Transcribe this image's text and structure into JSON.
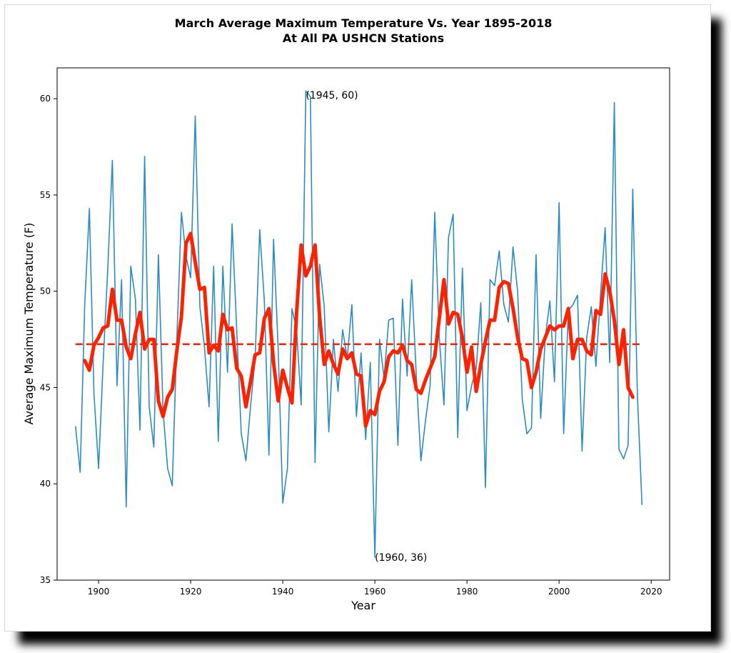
{
  "chart_data": {
    "type": "line",
    "title": "March Average Maximum Temperature Vs. Year 1895-2018",
    "subtitle": "At All PA USHCN Stations",
    "xlabel": "Year",
    "ylabel": "Average Maximum Temperature (F)",
    "xlim": [
      1891,
      2024
    ],
    "ylim": [
      35,
      61.6
    ],
    "xticks": [
      1900,
      1920,
      1940,
      1960,
      1980,
      2000,
      2020
    ],
    "yticks": [
      35,
      40,
      45,
      50,
      55,
      60
    ],
    "grid": false,
    "colors": {
      "raw": "#2b8cbe",
      "smooth": "#ff2200",
      "mean": "#ff2200"
    },
    "mean_value": 47.25,
    "annotations": [
      {
        "text": "(1945, 60)",
        "x": 1945,
        "y": 60
      },
      {
        "text": "(1960, 36)",
        "x": 1960,
        "y": 36
      }
    ],
    "series": [
      {
        "style": "raw",
        "x": [
          1895,
          1896,
          1897,
          1898,
          1899,
          1900,
          1901,
          1902,
          1903,
          1904,
          1905,
          1906,
          1907,
          1908,
          1909,
          1910,
          1911,
          1912,
          1913,
          1914,
          1915,
          1916,
          1917,
          1918,
          1919,
          1920,
          1921,
          1922,
          1923,
          1924,
          1925,
          1926,
          1927,
          1928,
          1929,
          1930,
          1931,
          1932,
          1933,
          1934,
          1935,
          1936,
          1937,
          1938,
          1939,
          1940,
          1941,
          1942,
          1943,
          1944,
          1945,
          1946,
          1947,
          1948,
          1949,
          1950,
          1951,
          1952,
          1953,
          1954,
          1955,
          1956,
          1957,
          1958,
          1959,
          1960,
          1961,
          1962,
          1963,
          1964,
          1965,
          1966,
          1967,
          1968,
          1969,
          1970,
          1971,
          1972,
          1973,
          1974,
          1975,
          1976,
          1977,
          1978,
          1979,
          1980,
          1981,
          1982,
          1983,
          1984,
          1985,
          1986,
          1987,
          1988,
          1989,
          1990,
          1991,
          1992,
          1993,
          1994,
          1995,
          1996,
          1997,
          1998,
          1999,
          2000,
          2001,
          2002,
          2003,
          2004,
          2005,
          2006,
          2007,
          2008,
          2009,
          2010,
          2011,
          2012,
          2013,
          2014,
          2015,
          2016,
          2017,
          2018
        ],
        "values": [
          43.0,
          40.6,
          49.3,
          54.3,
          44.7,
          40.8,
          46.3,
          51.2,
          56.8,
          45.1,
          50.6,
          38.8,
          51.3,
          49.6,
          42.8,
          57.0,
          44.0,
          41.9,
          51.9,
          43.8,
          40.8,
          39.9,
          47.5,
          54.1,
          51.8,
          50.7,
          59.1,
          49.2,
          47.1,
          44.0,
          51.3,
          42.2,
          51.3,
          45.8,
          53.5,
          48.0,
          42.6,
          41.2,
          44.0,
          46.5,
          53.2,
          49.5,
          41.5,
          52.7,
          47.0,
          39.0,
          40.8,
          49.1,
          48.0,
          44.1,
          60.4,
          60.1,
          41.1,
          51.4,
          49.2,
          42.7,
          47.5,
          44.8,
          48.0,
          46.5,
          49.3,
          43.5,
          46.8,
          42.3,
          46.3,
          36.2,
          47.5,
          45.5,
          48.5,
          48.6,
          42.0,
          49.6,
          45.6,
          50.6,
          45.6,
          41.2,
          43.3,
          45.1,
          54.1,
          47.6,
          44.1,
          52.8,
          54.0,
          42.4,
          51.2,
          43.8,
          45.1,
          46.0,
          49.4,
          39.8,
          50.6,
          50.3,
          52.1,
          49.3,
          48.4,
          52.3,
          50.0,
          44.4,
          42.6,
          42.9,
          51.9,
          43.4,
          47.6,
          49.5,
          45.3,
          54.6,
          42.6,
          49.0,
          49.3,
          49.8,
          41.7,
          47.6,
          49.2,
          46.1,
          49.8,
          53.3,
          46.3,
          59.8,
          41.8,
          41.3,
          42.0,
          55.3,
          44.7,
          38.9
        ]
      },
      {
        "style": "smooth",
        "x": [
          1897,
          1898,
          1899,
          1900,
          1901,
          1902,
          1903,
          1904,
          1905,
          1906,
          1907,
          1908,
          1909,
          1910,
          1911,
          1912,
          1913,
          1914,
          1915,
          1916,
          1917,
          1918,
          1919,
          1920,
          1921,
          1922,
          1923,
          1924,
          1925,
          1926,
          1927,
          1928,
          1929,
          1930,
          1931,
          1932,
          1933,
          1934,
          1935,
          1936,
          1937,
          1938,
          1939,
          1940,
          1941,
          1942,
          1943,
          1944,
          1945,
          1946,
          1947,
          1948,
          1949,
          1950,
          1951,
          1952,
          1953,
          1954,
          1955,
          1956,
          1957,
          1958,
          1959,
          1960,
          1961,
          1962,
          1963,
          1964,
          1965,
          1966,
          1967,
          1968,
          1969,
          1970,
          1971,
          1972,
          1973,
          1974,
          1975,
          1976,
          1977,
          1978,
          1979,
          1980,
          1981,
          1982,
          1983,
          1984,
          1985,
          1986,
          1987,
          1988,
          1989,
          1990,
          1991,
          1992,
          1993,
          1994,
          1995,
          1996,
          1997,
          1998,
          1999,
          2000,
          2001,
          2002,
          2003,
          2004,
          2005,
          2006,
          2007,
          2008,
          2009,
          2010,
          2011,
          2012,
          2013,
          2014,
          2015,
          2016
        ],
        "values": [
          46.4,
          45.9,
          47.2,
          47.6,
          48.1,
          48.2,
          50.1,
          48.5,
          48.5,
          47.1,
          46.5,
          47.8,
          48.9,
          47.0,
          47.5,
          47.5,
          44.3,
          43.5,
          44.5,
          44.9,
          46.9,
          48.7,
          52.5,
          53.0,
          51.5,
          50.1,
          50.2,
          46.8,
          47.2,
          46.9,
          48.8,
          48.0,
          48.1,
          46.0,
          45.6,
          44.0,
          45.3,
          46.7,
          46.8,
          48.6,
          49.1,
          46.3,
          44.3,
          45.9,
          45.0,
          44.2,
          48.9,
          52.4,
          50.8,
          51.3,
          52.4,
          48.7,
          46.2,
          46.9,
          46.2,
          45.7,
          47.0,
          46.5,
          46.8,
          45.7,
          45.6,
          43.0,
          43.8,
          43.6,
          44.8,
          45.3,
          46.6,
          46.9,
          46.8,
          47.2,
          46.4,
          46.2,
          44.9,
          44.7,
          45.4,
          46.0,
          46.6,
          48.6,
          50.6,
          48.3,
          48.9,
          48.8,
          47.6,
          45.8,
          47.1,
          44.8,
          46.2,
          47.4,
          48.5,
          48.5,
          50.2,
          50.5,
          50.4,
          49.1,
          47.6,
          46.5,
          46.4,
          45.0,
          45.8,
          47.0,
          47.6,
          48.2,
          48.0,
          48.2,
          48.2,
          49.1,
          46.5,
          47.5,
          47.5,
          46.9,
          46.7,
          49.0,
          48.8,
          50.9,
          50.0,
          48.5,
          46.2,
          48.0,
          45.0,
          44.5
        ]
      }
    ]
  }
}
